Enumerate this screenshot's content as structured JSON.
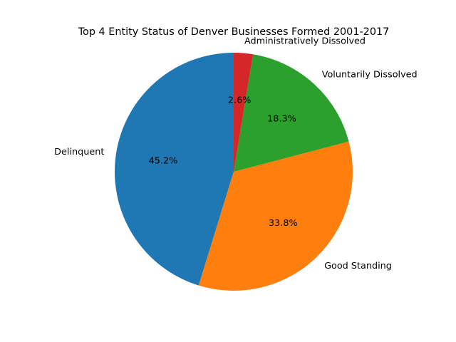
{
  "chart_data": {
    "type": "pie",
    "title": "Top 4 Entity Status of Denver Businesses Formed 2001-2017",
    "start_angle_deg": 90,
    "direction": "counterclockwise",
    "slices": [
      {
        "label": "Delinquent",
        "value": 45.2,
        "pct_label": "45.2%",
        "color": "#1f77b4"
      },
      {
        "label": "Good Standing",
        "value": 33.8,
        "pct_label": "33.8%",
        "color": "#ff7f0e"
      },
      {
        "label": "Voluntarily Dissolved",
        "value": 18.3,
        "pct_label": "18.3%",
        "color": "#2ca02c"
      },
      {
        "label": "Administratively Dissolved",
        "value": 2.6,
        "pct_label": "2.6%",
        "color": "#d62728"
      }
    ]
  }
}
